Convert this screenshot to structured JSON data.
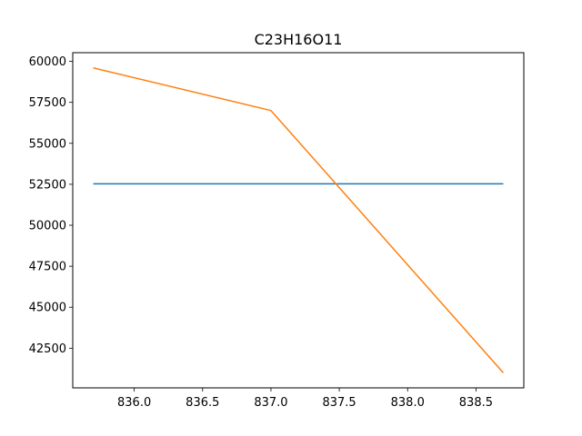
{
  "chart_data": {
    "type": "line",
    "title": "C23H16O11",
    "xlabel": "",
    "ylabel": "",
    "xlim": [
      835.55,
      838.85
    ],
    "ylim": [
      40080,
      60530
    ],
    "grid": false,
    "x_ticks": [
      836.0,
      836.5,
      837.0,
      837.5,
      838.0,
      838.5
    ],
    "x_tick_labels": [
      "836.0",
      "836.5",
      "837.0",
      "837.5",
      "838.0",
      "838.5"
    ],
    "y_ticks": [
      42500,
      45000,
      47500,
      50000,
      52500,
      55000,
      57500,
      60000
    ],
    "y_tick_labels": [
      "42500",
      "45000",
      "47500",
      "50000",
      "52500",
      "55000",
      "57500",
      "60000"
    ],
    "series": [
      {
        "color": "#1f77b4",
        "x": [
          835.7,
          838.7
        ],
        "y": [
          52530,
          52530
        ]
      },
      {
        "color": "#ff7f0e",
        "x": [
          835.7,
          837.0,
          838.7
        ],
        "y": [
          59600,
          57000,
          41000
        ]
      }
    ]
  }
}
